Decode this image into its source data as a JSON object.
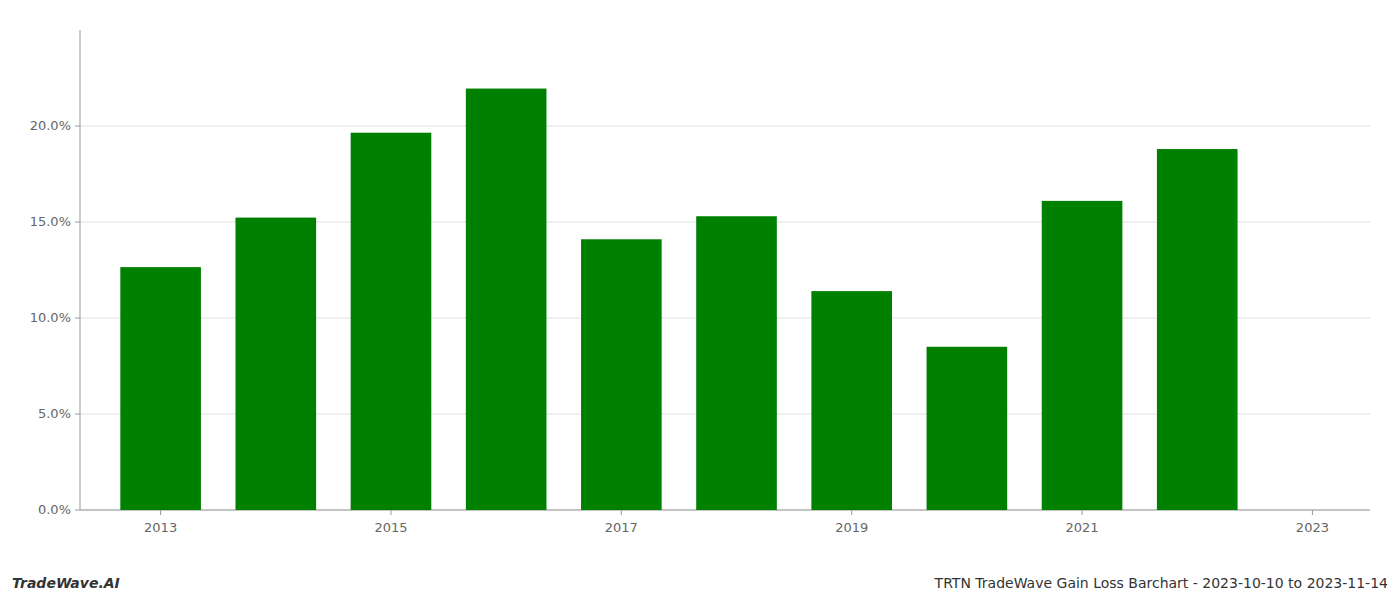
{
  "chart_data": {
    "type": "bar",
    "x": [
      2013,
      2014,
      2015,
      2016,
      2017,
      2018,
      2019,
      2020,
      2021,
      2022
    ],
    "values": [
      0.1265,
      0.1523,
      0.1965,
      0.2195,
      0.141,
      0.153,
      0.114,
      0.085,
      0.161,
      0.188
    ],
    "color": "#008000",
    "xlim": [
      2012.3,
      2023.5
    ],
    "xticks": [
      2013,
      2015,
      2017,
      2019,
      2021,
      2023
    ],
    "ylim": [
      0,
      0.25
    ],
    "yticks": [
      {
        "value": 0,
        "label": "0.0%"
      },
      {
        "value": 0.05,
        "label": "5.0%"
      },
      {
        "value": 0.1,
        "label": "10.0%"
      },
      {
        "value": 0.15,
        "label": "15.0%"
      },
      {
        "value": 0.2,
        "label": "20.0%"
      }
    ],
    "grid": true,
    "annotations": [
      "TradeWave.AI",
      "TRTN TradeWave Gain Loss Barchart - 2023-10-10 to 2023-11-14"
    ]
  }
}
